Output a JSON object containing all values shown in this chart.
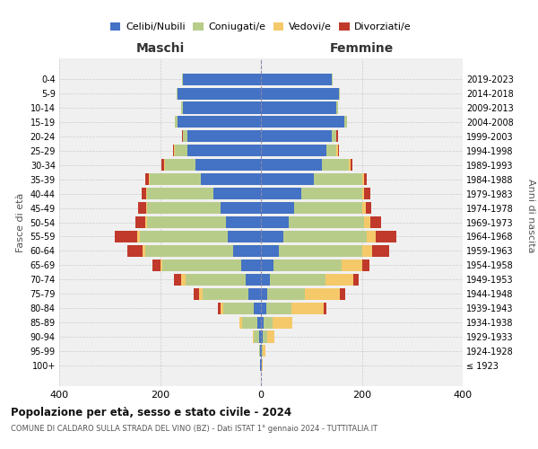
{
  "age_groups": [
    "100+",
    "95-99",
    "90-94",
    "85-89",
    "80-84",
    "75-79",
    "70-74",
    "65-69",
    "60-64",
    "55-59",
    "50-54",
    "45-49",
    "40-44",
    "35-39",
    "30-34",
    "25-29",
    "20-24",
    "15-19",
    "10-14",
    "5-9",
    "0-4"
  ],
  "birth_years": [
    "≤ 1923",
    "1924-1928",
    "1929-1933",
    "1934-1938",
    "1939-1943",
    "1944-1948",
    "1949-1953",
    "1954-1958",
    "1959-1963",
    "1964-1968",
    "1969-1973",
    "1974-1978",
    "1979-1983",
    "1984-1988",
    "1989-1993",
    "1994-1998",
    "1999-2003",
    "2004-2008",
    "2009-2013",
    "2014-2018",
    "2019-2023"
  ],
  "maschi": {
    "celibi": [
      2,
      2,
      4,
      8,
      15,
      25,
      30,
      40,
      55,
      65,
      70,
      80,
      95,
      120,
      130,
      145,
      145,
      165,
      155,
      165,
      155
    ],
    "coniugati": [
      0,
      2,
      10,
      30,
      60,
      90,
      120,
      155,
      175,
      175,
      155,
      145,
      130,
      100,
      60,
      25,
      10,
      5,
      3,
      2,
      2
    ],
    "vedovi": [
      0,
      0,
      2,
      4,
      5,
      8,
      8,
      5,
      5,
      5,
      4,
      3,
      2,
      2,
      2,
      2,
      0,
      0,
      0,
      0,
      0
    ],
    "divorziati": [
      0,
      0,
      0,
      0,
      5,
      10,
      15,
      15,
      30,
      45,
      20,
      15,
      10,
      8,
      5,
      3,
      2,
      0,
      0,
      0,
      0
    ]
  },
  "femmine": {
    "nubili": [
      2,
      2,
      4,
      5,
      10,
      12,
      18,
      25,
      35,
      45,
      55,
      65,
      80,
      105,
      120,
      130,
      140,
      165,
      150,
      155,
      140
    ],
    "coniugate": [
      0,
      2,
      8,
      18,
      50,
      75,
      110,
      135,
      165,
      165,
      150,
      135,
      120,
      95,
      55,
      20,
      10,
      5,
      3,
      2,
      2
    ],
    "vedove": [
      2,
      5,
      15,
      40,
      65,
      70,
      55,
      40,
      20,
      18,
      12,
      8,
      5,
      4,
      3,
      2,
      0,
      0,
      0,
      0,
      0
    ],
    "divorziate": [
      0,
      0,
      0,
      0,
      5,
      10,
      10,
      15,
      35,
      40,
      22,
      10,
      12,
      6,
      4,
      2,
      2,
      0,
      0,
      0,
      0
    ]
  },
  "colors": {
    "celibi_nubili": "#4472c4",
    "coniugati": "#b8cc8a",
    "vedovi": "#f5c96a",
    "divorziati": "#c0392b"
  },
  "xlim": 400,
  "title": "Popolazione per età, sesso e stato civile - 2024",
  "subtitle": "COMUNE DI CALDARO SULLA STRADA DEL VINO (BZ) - Dati ISTAT 1° gennaio 2024 - TUTTITALIA.IT",
  "ylabel_left": "Fasce di età",
  "ylabel_right": "Anni di nascita",
  "xlabel_left": "Maschi",
  "xlabel_right": "Femmine",
  "legend_labels": [
    "Celibi/Nubili",
    "Coniugati/e",
    "Vedovi/e",
    "Divorziati/e"
  ],
  "background_color": "#ffffff",
  "ax_facecolor": "#f0f0f0"
}
